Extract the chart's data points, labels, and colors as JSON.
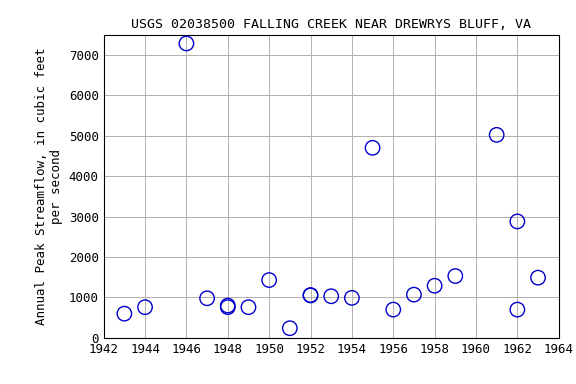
{
  "title": "USGS 02038500 FALLING CREEK NEAR DREWRYS BLUFF, VA",
  "ylabel_line1": "Annual Peak Streamflow, in cubic feet",
  "ylabel_line2": "per second",
  "xlim": [
    1942,
    1964
  ],
  "ylim": [
    0,
    7500
  ],
  "xticks": [
    1942,
    1944,
    1946,
    1948,
    1950,
    1952,
    1954,
    1956,
    1958,
    1960,
    1962,
    1964
  ],
  "yticks": [
    0,
    1000,
    2000,
    3000,
    4000,
    5000,
    6000,
    7000
  ],
  "data": [
    [
      1943,
      600
    ],
    [
      1944,
      760
    ],
    [
      1946,
      7280
    ],
    [
      1947,
      980
    ],
    [
      1948,
      800
    ],
    [
      1948,
      760
    ],
    [
      1949,
      760
    ],
    [
      1950,
      1430
    ],
    [
      1951,
      240
    ],
    [
      1952,
      1060
    ],
    [
      1952,
      1050
    ],
    [
      1953,
      1030
    ],
    [
      1954,
      990
    ],
    [
      1955,
      4700
    ],
    [
      1956,
      700
    ],
    [
      1957,
      1070
    ],
    [
      1958,
      1290
    ],
    [
      1959,
      1530
    ],
    [
      1961,
      5020
    ],
    [
      1962,
      2880
    ],
    [
      1962,
      700
    ],
    [
      1963,
      1490
    ]
  ],
  "marker_color": "#0000cc",
  "marker_size": 6,
  "bg_color": "#ffffff",
  "grid_color": "#b0b0b0",
  "title_fontsize": 9.5,
  "label_fontsize": 9,
  "tick_fontsize": 9
}
